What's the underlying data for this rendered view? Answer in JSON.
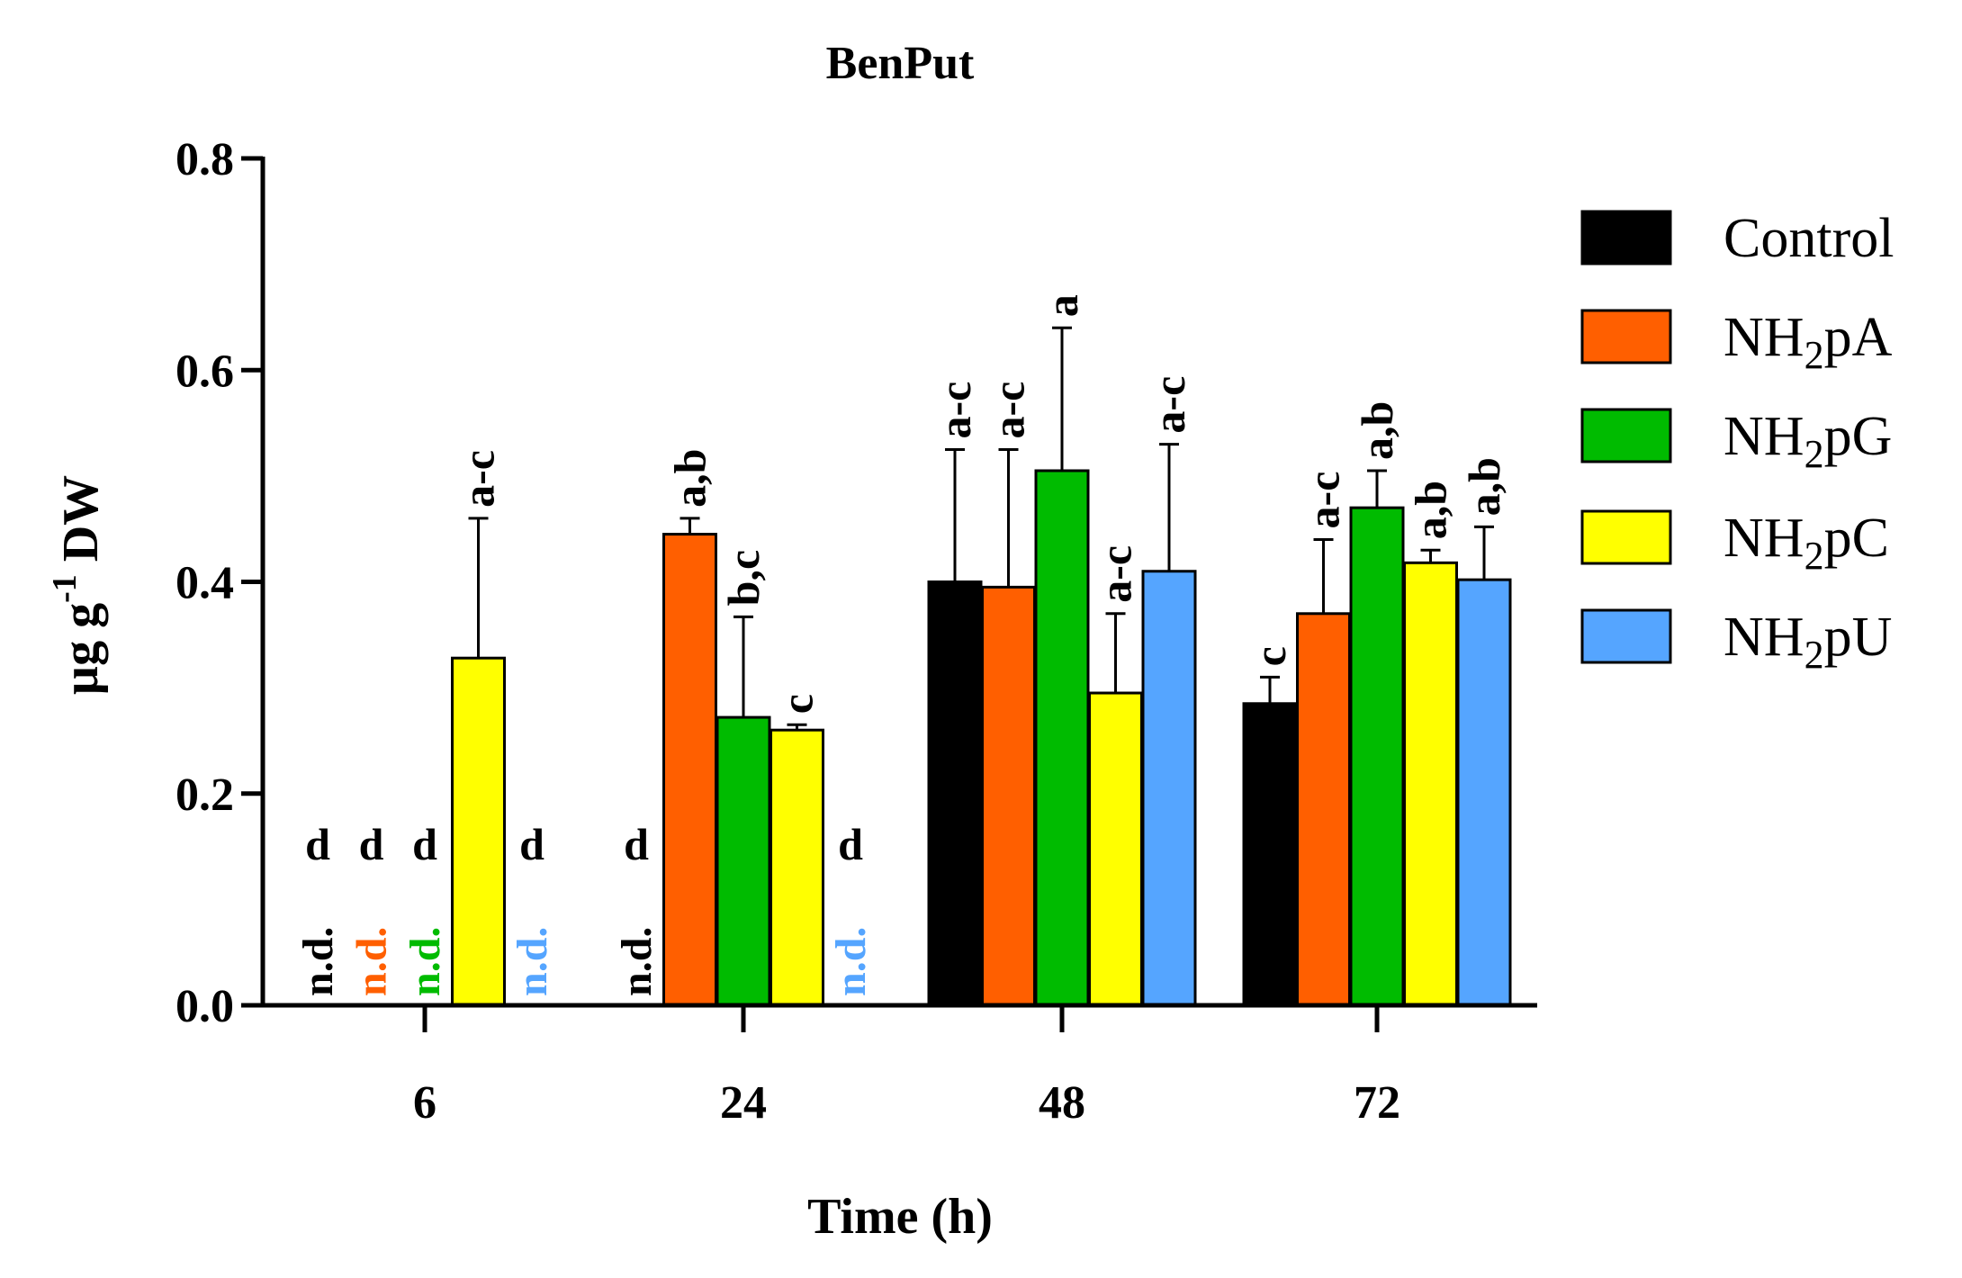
{
  "chart_data": {
    "type": "bar",
    "title": "BenPut",
    "xlabel": "Time (h)",
    "ylabel": {
      "base": "µg g",
      "sup": "-1",
      "tail": " DW"
    },
    "categories": [
      "6",
      "24",
      "48",
      "72"
    ],
    "ylim": [
      0,
      0.8
    ],
    "yticks": [
      "0.0",
      "0.2",
      "0.4",
      "0.6",
      "0.8"
    ],
    "grid": false,
    "legend_position": "right",
    "series": [
      {
        "name": "Control",
        "legend": {
          "base": "Control",
          "sub": "",
          "tail": ""
        },
        "color": "#000000",
        "values": [
          null,
          null,
          0.4,
          0.285
        ],
        "errors": [
          null,
          null,
          0.125,
          0.025
        ],
        "letters": [
          "d",
          "d",
          "a-c",
          "c"
        ],
        "nd": [
          "n.d.",
          "n.d.",
          null,
          null
        ]
      },
      {
        "name": "NH2pA",
        "legend": {
          "base": "NH",
          "sub": "2",
          "tail": "pA"
        },
        "color": "#ff5f00",
        "values": [
          null,
          0.445,
          0.395,
          0.37
        ],
        "errors": [
          null,
          0.015,
          0.13,
          0.07
        ],
        "letters": [
          "d",
          "a,b",
          "a-c",
          "a-c"
        ],
        "nd": [
          "n.d.",
          null,
          null,
          null
        ]
      },
      {
        "name": "NH2pG",
        "legend": {
          "base": "NH",
          "sub": "2",
          "tail": "pG"
        },
        "color": "#00bb00",
        "values": [
          null,
          0.272,
          0.505,
          0.47
        ],
        "errors": [
          null,
          0.095,
          0.135,
          0.035
        ],
        "letters": [
          "d",
          "b,c",
          "a",
          "a,b"
        ],
        "nd": [
          "n.d.",
          null,
          null,
          null
        ]
      },
      {
        "name": "NH2pC",
        "legend": {
          "base": "NH",
          "sub": "2",
          "tail": "pC"
        },
        "color": "#ffff00",
        "values": [
          0.328,
          0.26,
          0.295,
          0.418
        ],
        "errors": [
          0.132,
          0.005,
          0.075,
          0.012
        ],
        "letters": [
          "a-c",
          "c",
          "a-c",
          "a,b"
        ],
        "nd": [
          null,
          null,
          null,
          null
        ]
      },
      {
        "name": "NH2pU",
        "legend": {
          "base": "NH",
          "sub": "2",
          "tail": "pU"
        },
        "color": "#55a5ff",
        "values": [
          null,
          null,
          0.41,
          0.402
        ],
        "errors": [
          null,
          null,
          0.12,
          0.05
        ],
        "letters": [
          "d",
          "d",
          "a-c",
          "a,b"
        ],
        "nd": [
          "n.d.",
          "n.d.",
          null,
          null
        ]
      }
    ]
  }
}
